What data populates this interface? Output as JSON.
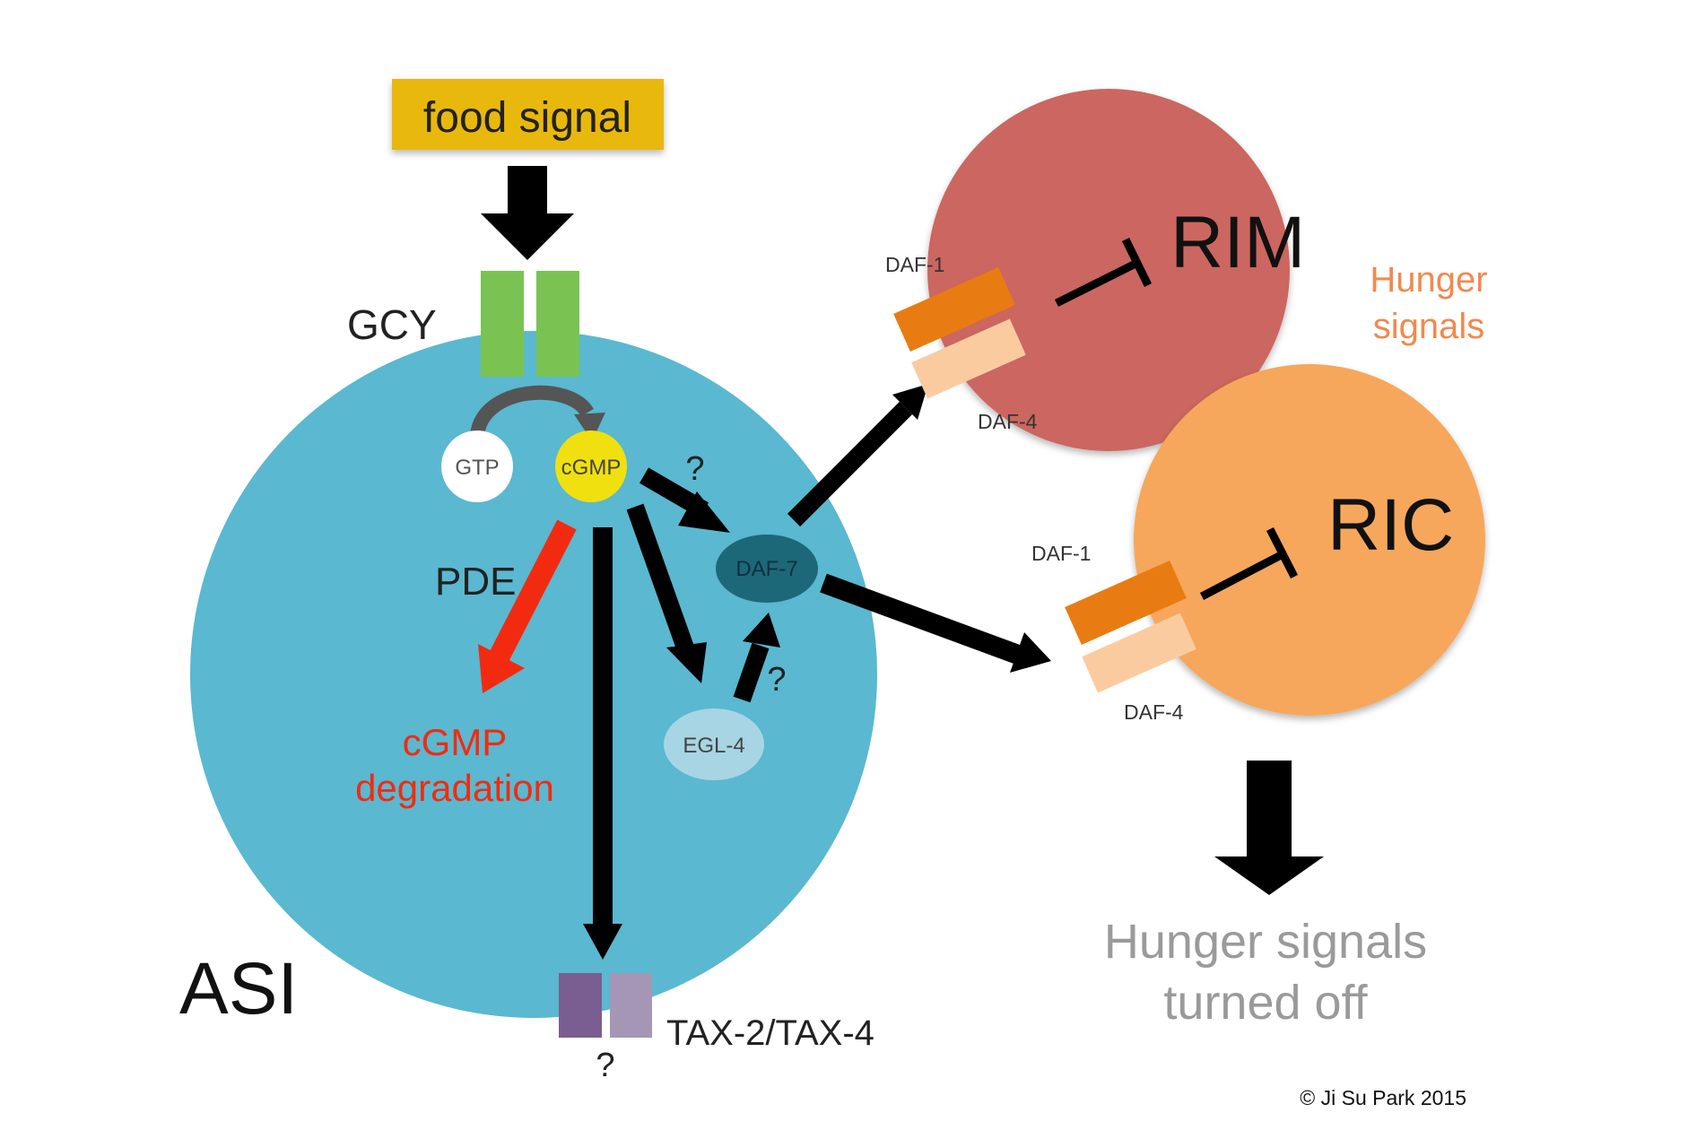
{
  "labels": {
    "food_signal": "food signal",
    "gcy": "GCY",
    "gtp": "GTP",
    "cgmp": "cGMP",
    "q1": "?",
    "pde": "PDE",
    "cgmp_degradation_line1": "cGMP",
    "cgmp_degradation_line2": "degradation",
    "daf7": "DAF-7",
    "egl4": "EGL-4",
    "q2": "?",
    "asi": "ASI",
    "tax": "TAX-2/TAX-4",
    "q3": "?",
    "rim": "RIM",
    "ric": "RIC",
    "daf1_rim": "DAF-1",
    "daf4_rim": "DAF-4",
    "daf1_ric": "DAF-1",
    "daf4_ric": "DAF-4",
    "hunger_signals_line1": "Hunger",
    "hunger_signals_line2": "signals",
    "turned_off_line1": "Hunger signals",
    "turned_off_line2": "turned off",
    "copyright": "© Ji Su Park 2015"
  },
  "colors": {
    "asi_cell": "#5ab8d0",
    "rim_cell": "#cc6660",
    "ric_cell": "#f6a75c",
    "food_box": "#e8b80f",
    "gcy_receptor": "#7ac352",
    "cgmp_node": "#f0e010",
    "gtp_node": "#ffffff",
    "daf7_node": "#1d6878",
    "egl4_node": "#a7d5e3",
    "daf1_receptor": "#e87c12",
    "daf4_receptor": "#fbcba0",
    "tax2": "#7b5e91",
    "tax4": "#a596b5",
    "pde_arrow": "#f22b10",
    "hunger_text": "#f08a4e",
    "turned_off_text": "#9a9a9a",
    "arrow": "#000000"
  }
}
